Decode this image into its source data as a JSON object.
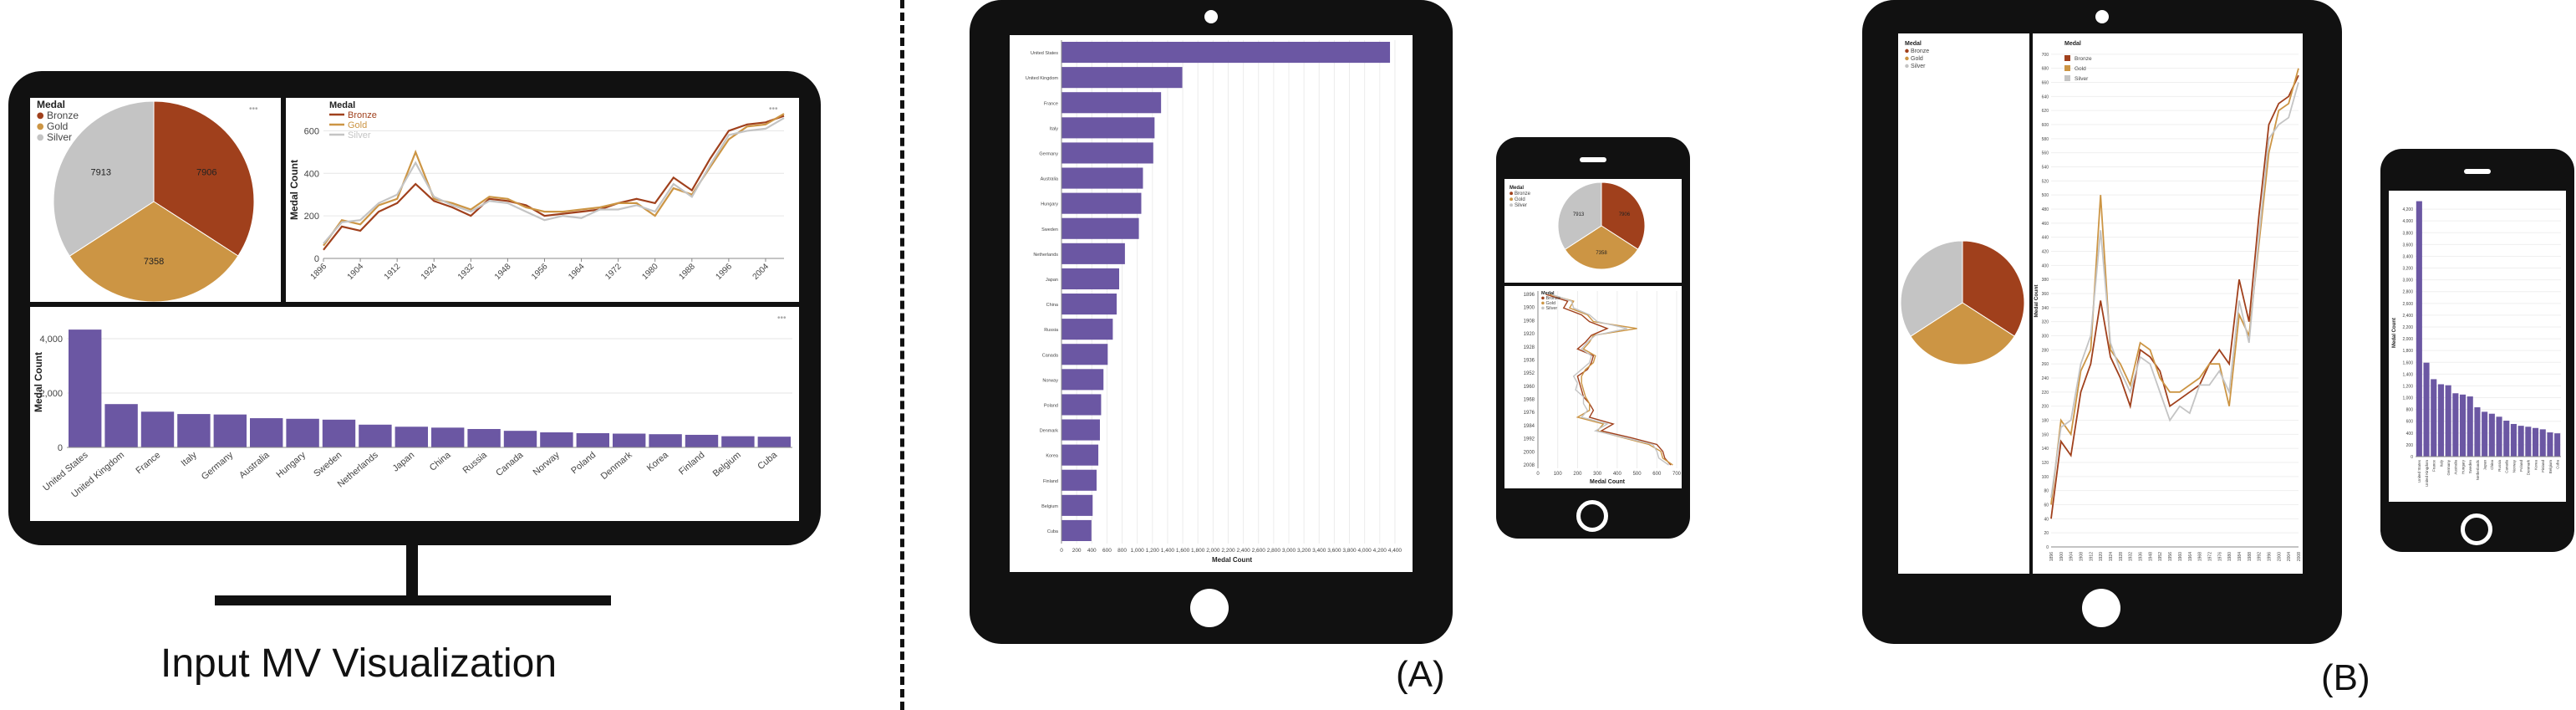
{
  "captions": {
    "input": "Input MV Visualization",
    "a": "(A)",
    "b": "(B)"
  },
  "colors": {
    "bronze": "#a0401c",
    "gold": "#cc9544",
    "silver": "#c4c4c4",
    "bar": "#6b57a3",
    "bezel": "#111111"
  },
  "icons": {
    "menu": "ellipsis-icon"
  },
  "chart_data": [
    {
      "id": "desktop-pie",
      "type": "pie",
      "legend_title": "Medal",
      "labels": [
        "Bronze",
        "Gold",
        "Silver"
      ],
      "values": [
        7906,
        7358,
        7913
      ],
      "value_labels": [
        "7906",
        "7358",
        "7913"
      ]
    },
    {
      "id": "desktop-line",
      "type": "line",
      "legend_title": "Medal",
      "ylabel": "Medal Count",
      "x": [
        "1896",
        "1900",
        "1904",
        "1908",
        "1912",
        "1920",
        "1924",
        "1928",
        "1932",
        "1936",
        "1948",
        "1952",
        "1956",
        "1960",
        "1964",
        "1968",
        "1972",
        "1976",
        "1980",
        "1984",
        "1988",
        "1992",
        "1996",
        "2000",
        "2004",
        "2008"
      ],
      "x_ticks": [
        "1896",
        "1904",
        "1912",
        "1924",
        "1932",
        "1948",
        "1956",
        "1964",
        "1972",
        "1980",
        "1988",
        "1996",
        "2004"
      ],
      "y_ticks": [
        "0",
        "200",
        "400",
        "600"
      ],
      "ylim": [
        0,
        700
      ],
      "series": [
        {
          "name": "Bronze",
          "values": [
            40,
            150,
            130,
            220,
            260,
            350,
            270,
            240,
            200,
            280,
            270,
            250,
            200,
            210,
            220,
            230,
            260,
            280,
            260,
            380,
            320,
            470,
            600,
            630,
            640,
            670
          ]
        },
        {
          "name": "Gold",
          "values": [
            60,
            180,
            160,
            250,
            280,
            500,
            280,
            260,
            230,
            290,
            280,
            240,
            220,
            220,
            230,
            240,
            260,
            260,
            200,
            330,
            300,
            430,
            560,
            620,
            630,
            680
          ]
        },
        {
          "name": "Silver",
          "values": [
            70,
            170,
            180,
            260,
            300,
            450,
            290,
            250,
            220,
            270,
            260,
            220,
            180,
            200,
            190,
            230,
            230,
            250,
            220,
            350,
            290,
            440,
            580,
            600,
            610,
            660
          ]
        }
      ]
    },
    {
      "id": "desktop-bar",
      "type": "bar",
      "ylabel": "Medal Count",
      "y_ticks": [
        "0",
        "2,000",
        "4,000"
      ],
      "ylim": [
        0,
        4800
      ],
      "categories": [
        "United States",
        "United Kingdom",
        "France",
        "Italy",
        "Germany",
        "Australia",
        "Hungary",
        "Sweden",
        "Netherlands",
        "Japan",
        "China",
        "Russia",
        "Canada",
        "Norway",
        "Poland",
        "Denmark",
        "Korea",
        "Finland",
        "Belgium",
        "Cuba"
      ],
      "values": [
        4335,
        1594,
        1314,
        1228,
        1211,
        1075,
        1053,
        1021,
        837,
        761,
        728,
        677,
        610,
        554,
        523,
        507,
        486,
        463,
        411,
        395
      ]
    },
    {
      "id": "tablet-a-hbar",
      "type": "bar",
      "orientation": "horizontal",
      "xlabel": "Medal Count",
      "x_ticks": [
        "0",
        "200",
        "400",
        "600",
        "800",
        "1,000",
        "1,200",
        "1,400",
        "1,600",
        "1,800",
        "2,000",
        "2,200",
        "2,400",
        "2,600",
        "2,800",
        "3,000",
        "3,200",
        "3,400",
        "3,600",
        "3,800",
        "4,000",
        "4,200",
        "4,400"
      ],
      "xlim": [
        0,
        4500
      ],
      "categories": [
        "United States",
        "United Kingdom",
        "France",
        "Italy",
        "Germany",
        "Australia",
        "Hungary",
        "Sweden",
        "Netherlands",
        "Japan",
        "China",
        "Russia",
        "Canada",
        "Norway",
        "Poland",
        "Denmark",
        "Korea",
        "Finland",
        "Belgium",
        "Cuba"
      ],
      "values": [
        4335,
        1594,
        1314,
        1228,
        1211,
        1075,
        1053,
        1021,
        837,
        761,
        728,
        677,
        610,
        554,
        523,
        507,
        486,
        463,
        411,
        395
      ]
    },
    {
      "id": "phone-a-pie",
      "type": "pie",
      "legend_title": "Medal",
      "labels": [
        "Bronze",
        "Gold",
        "Silver"
      ],
      "values": [
        7906,
        7358,
        7913
      ],
      "value_labels": [
        "7906",
        "7358",
        "7913"
      ]
    },
    {
      "id": "phone-a-line",
      "type": "line",
      "orientation": "vertical",
      "legend_title": "Medal",
      "xlabel": "Medal Count",
      "x_ticks": [
        "0",
        "100",
        "200",
        "300",
        "400",
        "500",
        "600",
        "700"
      ],
      "y_ticks": [
        "1896",
        "1900",
        "1908",
        "1920",
        "1928",
        "1936",
        "1952",
        "1960",
        "1968",
        "1976",
        "1984",
        "1992",
        "2000",
        "2008"
      ],
      "series": [
        "Bronze",
        "Gold",
        "Silver"
      ]
    },
    {
      "id": "tablet-b-pie",
      "type": "pie",
      "legend_title": "Medal",
      "labels": [
        "Bronze",
        "Gold",
        "Silver"
      ],
      "values": [
        7906,
        7358,
        7913
      ]
    },
    {
      "id": "tablet-b-line",
      "type": "line",
      "legend_title": "Medal",
      "ylabel": "Medal Count",
      "y_ticks": [
        "0",
        "20",
        "40",
        "60",
        "80",
        "100",
        "120",
        "140",
        "160",
        "180",
        "200",
        "220",
        "240",
        "260",
        "280",
        "300",
        "320",
        "340",
        "360",
        "380",
        "400",
        "420",
        "440",
        "460",
        "480",
        "500",
        "520",
        "540",
        "560",
        "580",
        "600",
        "620",
        "640",
        "660",
        "680",
        "700"
      ],
      "ylim": [
        0,
        720
      ],
      "series": [
        "Bronze",
        "Gold",
        "Silver"
      ]
    },
    {
      "id": "phone-b-bar",
      "type": "bar",
      "ylabel": "Medal Count",
      "y_ticks": [
        "0",
        "200",
        "400",
        "600",
        "800",
        "1,000",
        "1,200",
        "1,400",
        "1,600",
        "1,800",
        "2,000",
        "2,200",
        "2,400",
        "2,600",
        "2,800",
        "3,000",
        "3,200",
        "3,400",
        "3,600",
        "3,800",
        "4,000",
        "4,200"
      ],
      "ylim": [
        0,
        4400
      ],
      "categories": [
        "United States",
        "United Kingdom",
        "France",
        "Italy",
        "Germany",
        "Australia",
        "Hungary",
        "Sweden",
        "Netherlands",
        "Japan",
        "China",
        "Russia",
        "Canada",
        "Norway",
        "Poland",
        "Denmark",
        "Korea",
        "Finland",
        "Belgium",
        "Cuba"
      ],
      "values": [
        4335,
        1594,
        1314,
        1228,
        1211,
        1075,
        1053,
        1021,
        837,
        761,
        728,
        677,
        610,
        554,
        523,
        507,
        486,
        463,
        411,
        395
      ]
    }
  ]
}
